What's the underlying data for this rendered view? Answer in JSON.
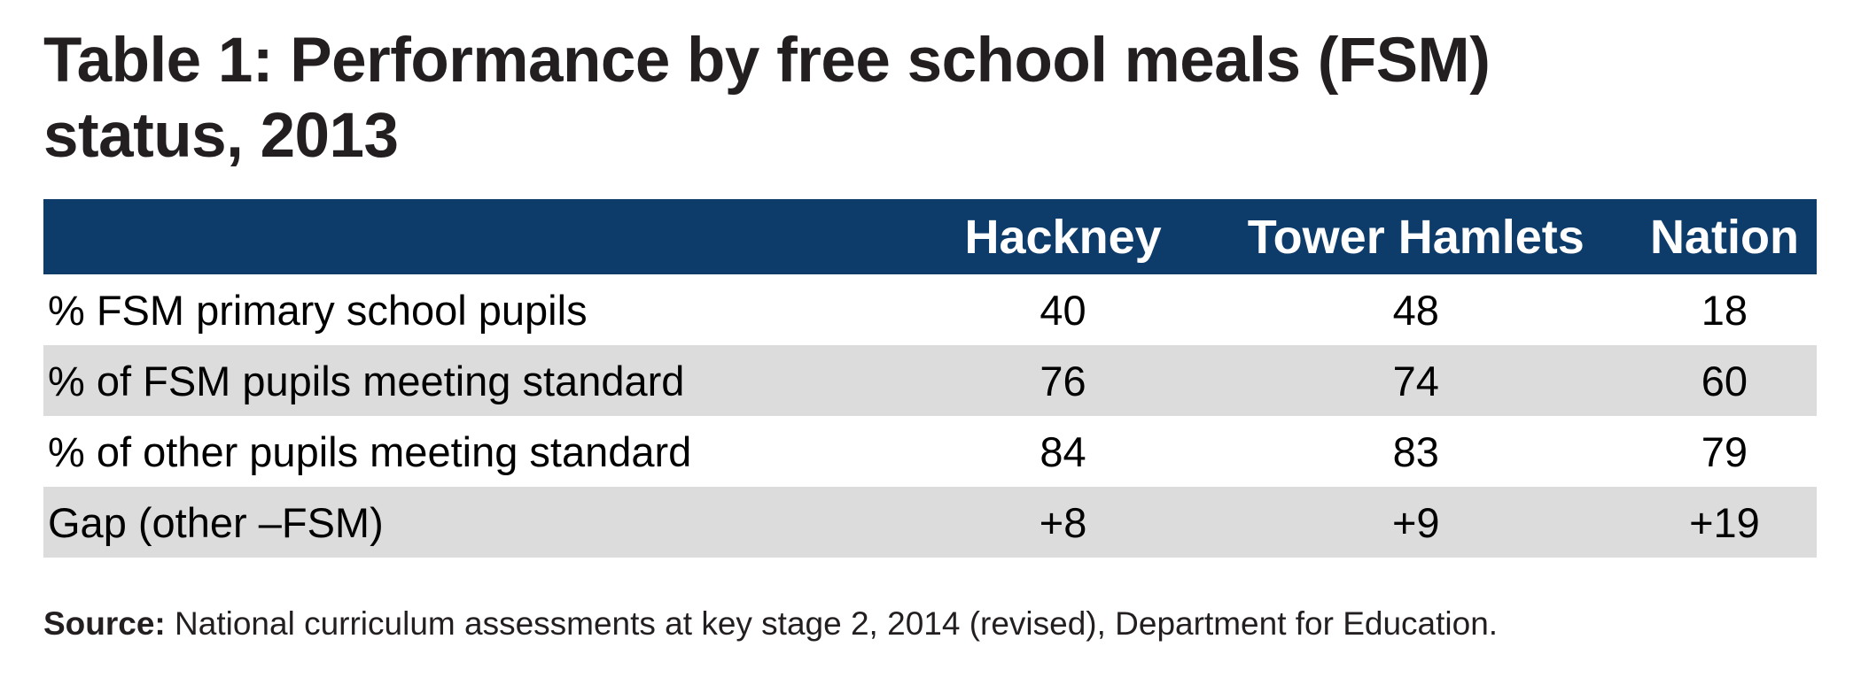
{
  "title": {
    "line1": "Table 1: Performance by free school meals (FSM)",
    "line2": "status, 2013"
  },
  "table": {
    "header": {
      "col0": "",
      "col1": "Hackney",
      "col2": "Tower Hamlets",
      "col3": "Nation"
    },
    "rows": [
      {
        "label": "% FSM primary school pupils",
        "values": [
          "40",
          "48",
          "18"
        ]
      },
      {
        "label": "% of FSM pupils meeting standard",
        "values": [
          "76",
          "74",
          "60"
        ]
      },
      {
        "label": "% of other pupils meeting standard",
        "values": [
          "84",
          "83",
          "79"
        ]
      },
      {
        "label": "Gap (other –FSM)",
        "values": [
          "+8",
          "+9",
          "+19"
        ]
      }
    ]
  },
  "source": {
    "label": "Source:",
    "text": "National curriculum assessments at key stage 2, 2014 (revised), Department for Education."
  },
  "colors": {
    "header_bg": "#0d3c6b",
    "header_text": "#ffffff",
    "alt_row_bg": "#dcdcdc",
    "body_text": "#000000",
    "title_text": "#231f20"
  },
  "chart_data": {
    "type": "table",
    "title": "Table 1: Performance by free school meals (FSM) status, 2013",
    "columns": [
      "Hackney",
      "Tower Hamlets",
      "Nation"
    ],
    "row_labels": [
      "% FSM primary school pupils",
      "% of FSM pupils meeting standard",
      "% of other pupils meeting standard",
      "Gap (other –FSM)"
    ],
    "values": [
      [
        40,
        48,
        18
      ],
      [
        76,
        74,
        60
      ],
      [
        84,
        83,
        79
      ],
      [
        "+8",
        "+9",
        "+19"
      ]
    ],
    "source": "National curriculum assessments at key stage 2, 2014 (revised), Department for Education."
  }
}
